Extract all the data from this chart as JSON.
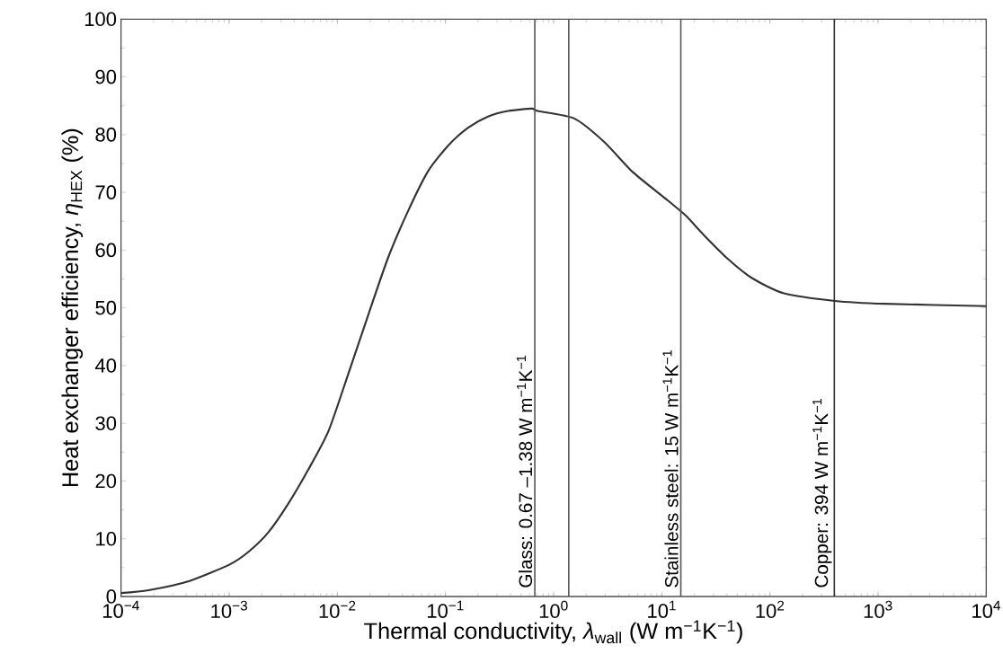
{
  "chart_data": {
    "type": "line",
    "xlabel": "Thermal conductivity, *λ*$_{wall}$ (W m$^{−1}$K$^{−1}$)",
    "ylabel": "Heat exchanger efficiency, *η*$_{HEX}$ (%)",
    "log": "x",
    "xlim": [
      0.0001,
      10000
    ],
    "ylim": [
      0,
      100
    ],
    "xticks": [
      {
        "value": 0.0001,
        "label": "10$^{−4}$"
      },
      {
        "value": 0.001,
        "label": "10$^{−3}$"
      },
      {
        "value": 0.01,
        "label": "10$^{−2}$"
      },
      {
        "value": 0.1,
        "label": "10$^{−1}$"
      },
      {
        "value": 1,
        "label": "10$^{0}$"
      },
      {
        "value": 10,
        "label": "10$^{1}$"
      },
      {
        "value": 100,
        "label": "10$^{2}$"
      },
      {
        "value": 1000,
        "label": "10$^{3}$"
      },
      {
        "value": 10000,
        "label": "10$^{4}$"
      }
    ],
    "yticks": [
      0,
      10,
      20,
      30,
      40,
      50,
      60,
      70,
      80,
      90,
      100
    ],
    "marker": "none",
    "line_style": "solid",
    "series": [
      {
        "color": "#333333",
        "x": [
          0.0001,
          0.00018,
          0.00043,
          0.001,
          0.0015,
          0.0023,
          0.0035,
          0.0054,
          0.0083,
          0.0126,
          0.0195,
          0.0295,
          0.0457,
          0.0692,
          0.107,
          0.162,
          0.245,
          0.38,
          0.63,
          0.71,
          1.55,
          2.95,
          5.4,
          10.7,
          16.6,
          24.5,
          40.7,
          67.6,
          135,
          398,
          1150,
          10000
        ],
        "values": [
          0.6,
          1.1,
          2.7,
          5.5,
          7.7,
          11.1,
          16,
          22,
          28.7,
          38.5,
          49,
          58.7,
          67,
          73.7,
          78.2,
          81.2,
          83.1,
          84.1,
          84.5,
          84.1,
          82.8,
          78.7,
          73.5,
          69,
          66,
          62.6,
          58.5,
          55.2,
          52.5,
          51.2,
          50.7,
          50.3
        ]
      }
    ],
    "ref_lines": [
      {
        "axis": "x",
        "value": 0.67,
        "label": "Glass: 0.67 –1.38 W m$^{−1}$K$^{−1}$",
        "color": "#555555"
      },
      {
        "axis": "x",
        "value": 1.38,
        "color": "#555555"
      },
      {
        "axis": "x",
        "value": 15,
        "label": "Stainless steel: 15 W m$^{−1}$K$^{−1}$",
        "color": "#555555"
      },
      {
        "axis": "x",
        "value": 394,
        "label": "Copper: 394 W m$^{−1}$K$^{−1}$",
        "color": "#333333"
      }
    ]
  }
}
